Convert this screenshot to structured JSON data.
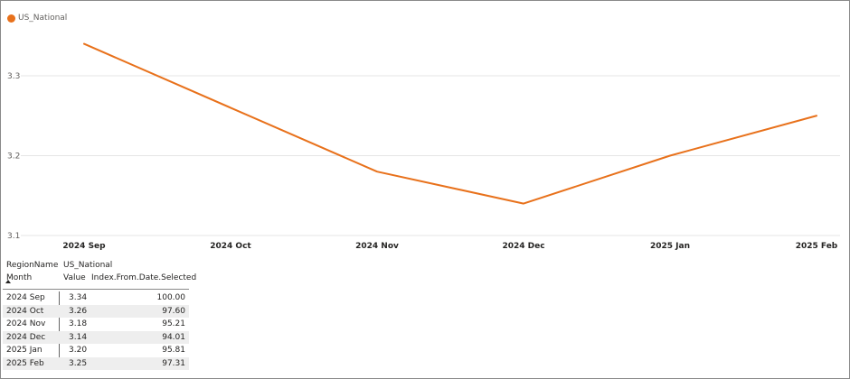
{
  "legend": {
    "label": "US_National",
    "color": "#E8711B"
  },
  "chart_data": {
    "type": "line",
    "categories": [
      "2024 Sep",
      "2024 Oct",
      "2024 Nov",
      "2024 Dec",
      "2025 Jan",
      "2025 Feb"
    ],
    "series": [
      {
        "name": "US_National",
        "values": [
          3.34,
          3.26,
          3.18,
          3.14,
          3.2,
          3.25
        ],
        "color": "#E8711B"
      }
    ],
    "ylim": [
      3.1,
      3.34
    ],
    "yticks": [
      "3.1",
      "3.2",
      "3.3"
    ],
    "grid": true,
    "legend_position": "top-left"
  },
  "matrix": {
    "header1": {
      "col1": "RegionName",
      "col2": "US_National"
    },
    "header2": {
      "col1": "Month",
      "col2": "Value",
      "col3": "Index.From.Date.Selected"
    },
    "rows": [
      {
        "month": "2024 Sep",
        "value": "3.34",
        "index": "100.00"
      },
      {
        "month": "2024 Oct",
        "value": "3.26",
        "index": "97.60"
      },
      {
        "month": "2024 Nov",
        "value": "3.18",
        "index": "95.21"
      },
      {
        "month": "2024 Dec",
        "value": "3.14",
        "index": "94.01"
      },
      {
        "month": "2025 Jan",
        "value": "3.20",
        "index": "95.81"
      },
      {
        "month": "2025 Feb",
        "value": "3.25",
        "index": "97.31"
      }
    ]
  }
}
